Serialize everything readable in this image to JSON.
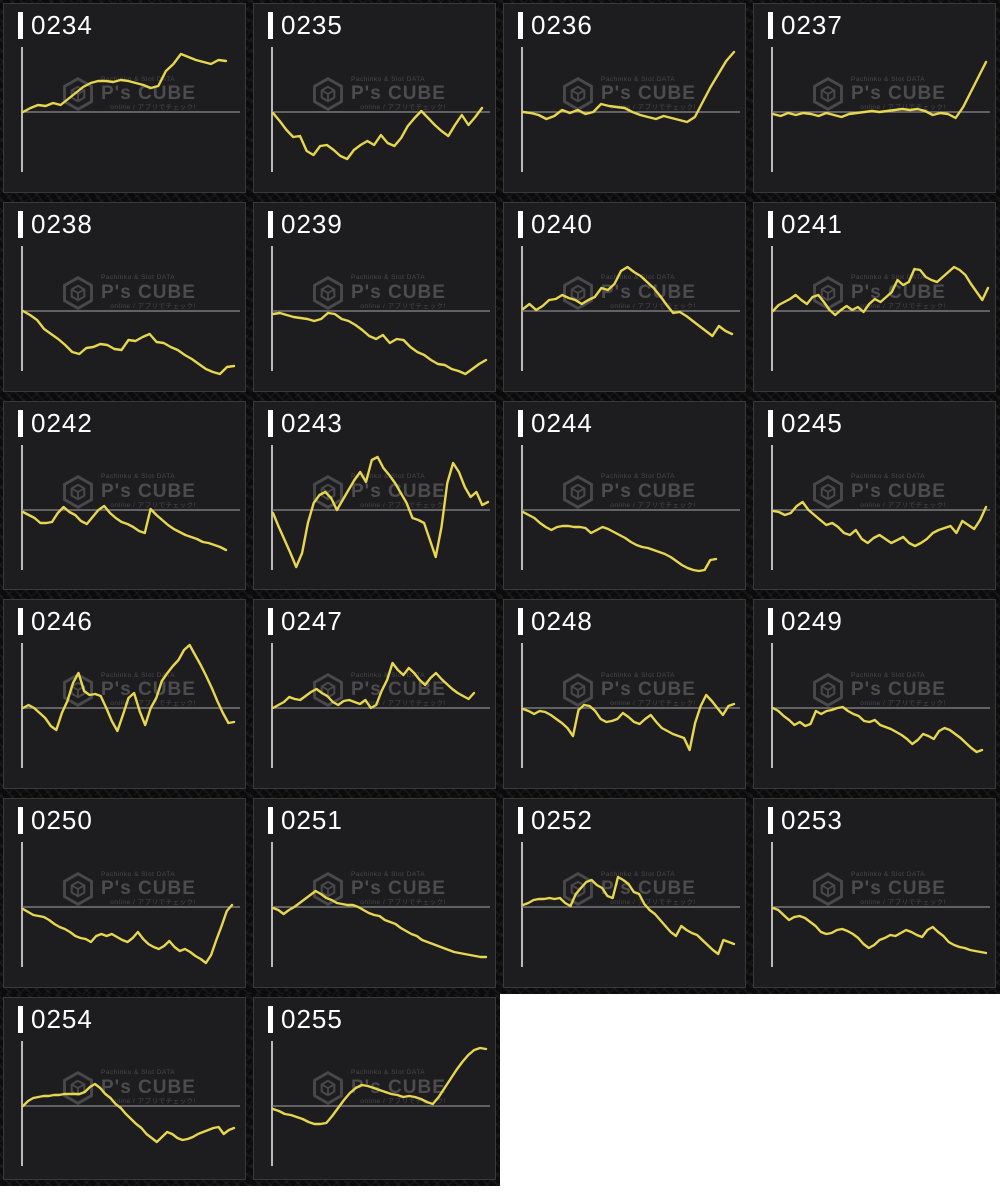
{
  "watermark": {
    "line_top": "Pachinko & Slot DATA",
    "brand": "P's CUBE",
    "line_bottom": "online / アプリでチェック!"
  },
  "colors": {
    "line": "#e7d64f",
    "vertical_axis": "#b9b9b9",
    "zero_line": "#8d8d8d",
    "tile_background": "#1d1d1f",
    "gap_background": "#0b0b0c",
    "label_text": "#ffffff",
    "watermark_gray": "#4d4d50"
  },
  "chart_data": {
    "type": "line",
    "title": "Per-machine win/loss trend sparklines (machines 0234–0255)",
    "xlabel": "",
    "ylabel": "",
    "grid": false,
    "legend": "none",
    "note": "Each tile: yellow polyline vs. horizontal zero line; values are vertical offsets (screenshot px) above(+)/below(-) the zero line, evenly spaced in x.",
    "baseline": 0,
    "series": [
      {
        "name": "0234",
        "x_end": 222,
        "values": [
          0,
          4,
          7,
          6,
          9,
          7,
          13,
          19,
          25,
          29,
          31,
          31,
          30,
          32,
          31,
          29,
          27,
          24,
          26,
          41,
          48,
          58,
          55,
          52,
          50,
          48,
          52,
          51
        ]
      },
      {
        "name": "0235",
        "x_end": 228,
        "values": [
          -1,
          -9,
          -18,
          -25,
          -24,
          -39,
          -43,
          -34,
          -33,
          -38,
          -44,
          -47,
          -38,
          -33,
          -29,
          -33,
          -23,
          -31,
          -34,
          -26,
          -14,
          -6,
          1,
          -6,
          -13,
          -19,
          -24,
          -13,
          -3,
          -13,
          -5,
          4
        ]
      },
      {
        "name": "0236",
        "x_end": 230,
        "values": [
          0,
          -1,
          -3,
          -7,
          -4,
          2,
          -1,
          2,
          -2,
          0,
          8,
          6,
          5,
          4,
          0,
          -3,
          -5,
          -7,
          -4,
          -6,
          -8,
          -10,
          -5,
          10,
          25,
          38,
          51,
          60
        ]
      },
      {
        "name": "0237",
        "x_end": 232,
        "values": [
          -2,
          -4,
          -1,
          -3,
          -1,
          -2,
          -4,
          -1,
          -3,
          -5,
          -2,
          -1,
          0,
          1,
          0,
          1,
          2,
          3,
          2,
          3,
          1,
          -3,
          -1,
          -2,
          -6,
          5,
          20,
          35,
          50
        ]
      },
      {
        "name": "0238",
        "x_end": 230,
        "values": [
          0,
          -4,
          -9,
          -18,
          -23,
          -28,
          -34,
          -41,
          -43,
          -37,
          -36,
          -33,
          -34,
          -38,
          -39,
          -29,
          -30,
          -26,
          -23,
          -31,
          -32,
          -36,
          -39,
          -44,
          -48,
          -53,
          -58,
          -61,
          -63,
          -56,
          -55
        ]
      },
      {
        "name": "0239",
        "x_end": 232,
        "values": [
          -3,
          -2,
          -4,
          -6,
          -7,
          -8,
          -10,
          -8,
          -2,
          -3,
          -8,
          -10,
          -14,
          -19,
          -25,
          -28,
          -24,
          -32,
          -28,
          -29,
          -36,
          -41,
          -44,
          -49,
          -53,
          -54,
          -58,
          -60,
          -63,
          -58,
          -53,
          -49
        ]
      },
      {
        "name": "0240",
        "x_end": 228,
        "values": [
          2,
          7,
          1,
          5,
          11,
          12,
          16,
          13,
          11,
          7,
          11,
          14,
          23,
          21,
          27,
          40,
          44,
          39,
          35,
          29,
          23,
          15,
          6,
          -2,
          -1,
          -5,
          -10,
          -15,
          -20,
          -25,
          -15,
          -20,
          -23
        ]
      },
      {
        "name": "0241",
        "x_end": 234,
        "values": [
          0,
          6,
          9,
          12,
          16,
          11,
          7,
          14,
          16,
          9,
          1,
          -4,
          1,
          5,
          1,
          4,
          -1,
          7,
          12,
          9,
          14,
          19,
          31,
          26,
          29,
          42,
          41,
          34,
          31,
          29,
          34,
          39,
          44,
          41,
          36,
          27,
          19,
          11,
          23
        ]
      },
      {
        "name": "0242",
        "x_end": 222,
        "values": [
          -2,
          -5,
          -8,
          -13,
          -13,
          -12,
          -3,
          3,
          -2,
          -5,
          -11,
          -14,
          -7,
          0,
          4,
          -3,
          -8,
          -12,
          -14,
          -17,
          -21,
          -23,
          1,
          -5,
          -10,
          -15,
          -19,
          -22,
          -25,
          -27,
          -29,
          -32,
          -33,
          -35,
          -37,
          -40
        ]
      },
      {
        "name": "0243",
        "x_end": 234,
        "values": [
          -3,
          -17,
          -30,
          -43,
          -57,
          -43,
          -13,
          7,
          15,
          18,
          12,
          0,
          10,
          20,
          30,
          38,
          28,
          50,
          53,
          42,
          35,
          27,
          17,
          7,
          -8,
          -10,
          -13,
          -30,
          -47,
          -17,
          27,
          47,
          38,
          23,
          13,
          18,
          5,
          8
        ]
      },
      {
        "name": "0244",
        "x_end": 212,
        "values": [
          -2,
          -5,
          -8,
          -13,
          -17,
          -20,
          -17,
          -16,
          -16,
          -17,
          -17,
          -18,
          -23,
          -20,
          -17,
          -19,
          -22,
          -25,
          -28,
          -32,
          -35,
          -37,
          -38,
          -40,
          -42,
          -44,
          -47,
          -51,
          -55,
          -58,
          -60,
          -61,
          -60,
          -50,
          -49
        ]
      },
      {
        "name": "0245",
        "x_end": 232,
        "values": [
          -1,
          -2,
          -5,
          -3,
          4,
          8,
          0,
          -5,
          -10,
          -15,
          -13,
          -17,
          -23,
          -25,
          -20,
          -29,
          -33,
          -28,
          -25,
          -29,
          -33,
          -30,
          -27,
          -33,
          -36,
          -33,
          -29,
          -23,
          -20,
          -18,
          -16,
          -23,
          -11,
          -15,
          -19,
          -10,
          3
        ]
      },
      {
        "name": "0246",
        "x_end": 230,
        "values": [
          0,
          3,
          0,
          -5,
          -10,
          -18,
          -22,
          -5,
          7,
          25,
          35,
          17,
          13,
          14,
          12,
          0,
          -13,
          -23,
          -7,
          10,
          15,
          -3,
          -17,
          0,
          10,
          27,
          35,
          42,
          48,
          58,
          63,
          53,
          43,
          32,
          20,
          7,
          -5,
          -15,
          -14
        ]
      },
      {
        "name": "0247",
        "x_end": 220,
        "values": [
          0,
          3,
          6,
          11,
          9,
          8,
          12,
          16,
          19,
          15,
          12,
          6,
          3,
          7,
          8,
          6,
          4,
          8,
          0,
          3,
          17,
          28,
          45,
          38,
          33,
          40,
          35,
          28,
          23,
          30,
          35,
          29,
          24,
          19,
          15,
          12,
          9,
          15
        ]
      },
      {
        "name": "0248",
        "x_end": 230,
        "values": [
          -1,
          -3,
          -6,
          -3,
          -4,
          -7,
          -11,
          -15,
          -20,
          -28,
          -2,
          3,
          2,
          -3,
          -11,
          -14,
          -13,
          -11,
          -5,
          -9,
          -14,
          -16,
          -11,
          -7,
          -14,
          -20,
          -23,
          -26,
          -28,
          -30,
          -42,
          -15,
          2,
          13,
          7,
          0,
          -7,
          2,
          4
        ]
      },
      {
        "name": "0249",
        "x_end": 228,
        "values": [
          0,
          -3,
          -8,
          -12,
          -17,
          -14,
          -18,
          -16,
          -3,
          -6,
          -3,
          -2,
          0,
          1,
          -3,
          -6,
          -8,
          -13,
          -14,
          -12,
          -17,
          -19,
          -21,
          -24,
          -27,
          -31,
          -36,
          -32,
          -26,
          -28,
          -31,
          -23,
          -20,
          -22,
          -26,
          -30,
          -35,
          -40,
          -44,
          -42
        ]
      },
      {
        "name": "0250",
        "x_end": 228,
        "values": [
          -2,
          -5,
          -8,
          -9,
          -10,
          -13,
          -17,
          -20,
          -22,
          -25,
          -29,
          -31,
          -32,
          -35,
          -29,
          -27,
          -29,
          -27,
          -30,
          -33,
          -35,
          -31,
          -25,
          -32,
          -37,
          -40,
          -42,
          -39,
          -34,
          -40,
          -44,
          -42,
          -45,
          -49,
          -52,
          -56,
          -48,
          -33,
          -19,
          -4,
          2
        ]
      },
      {
        "name": "0251",
        "x_end": 232,
        "values": [
          -1,
          -3,
          -7,
          -3,
          0,
          4,
          8,
          12,
          16,
          13,
          9,
          7,
          4,
          3,
          2,
          2,
          0,
          -3,
          -6,
          -8,
          -9,
          -13,
          -15,
          -17,
          -21,
          -24,
          -27,
          -29,
          -33,
          -35,
          -37,
          -39,
          -41,
          -43,
          -45,
          -46,
          -47,
          -48,
          -49,
          -50,
          -50
        ]
      },
      {
        "name": "0252",
        "x_end": 230,
        "values": [
          2,
          4,
          7,
          8,
          8,
          9,
          8,
          9,
          4,
          1,
          13,
          19,
          25,
          27,
          22,
          19,
          11,
          9,
          30,
          27,
          23,
          15,
          13,
          3,
          -3,
          -7,
          -13,
          -19,
          -25,
          -29,
          -19,
          -23,
          -26,
          -28,
          -33,
          -38,
          -43,
          -47,
          -33,
          -35,
          -37
        ]
      },
      {
        "name": "0253",
        "x_end": 232,
        "values": [
          -1,
          -3,
          -8,
          -13,
          -10,
          -9,
          -11,
          -15,
          -19,
          -25,
          -27,
          -26,
          -23,
          -22,
          -24,
          -27,
          -31,
          -37,
          -41,
          -38,
          -33,
          -31,
          -28,
          -29,
          -26,
          -23,
          -25,
          -28,
          -30,
          -23,
          -20,
          -25,
          -29,
          -35,
          -38,
          -40,
          -41,
          -43,
          -44,
          -45,
          -46
        ]
      },
      {
        "name": "0254",
        "x_end": 230,
        "values": [
          0,
          5,
          8,
          9,
          10,
          10,
          11,
          11,
          12,
          12,
          12,
          12,
          14,
          19,
          22,
          18,
          12,
          8,
          2,
          -2,
          -8,
          -13,
          -18,
          -22,
          -28,
          -32,
          -36,
          -31,
          -26,
          -28,
          -32,
          -34,
          -33,
          -31,
          -28,
          -26,
          -24,
          -22,
          -21,
          -28,
          -24,
          -22
        ]
      },
      {
        "name": "0255",
        "x_end": 232,
        "values": [
          -3,
          -5,
          -8,
          -9,
          -11,
          -13,
          -16,
          -18,
          -18,
          -17,
          -10,
          -2,
          6,
          13,
          18,
          21,
          20,
          18,
          16,
          14,
          12,
          11,
          9,
          10,
          9,
          7,
          4,
          2,
          9,
          18,
          27,
          36,
          44,
          51,
          56,
          58,
          57
        ]
      }
    ]
  }
}
